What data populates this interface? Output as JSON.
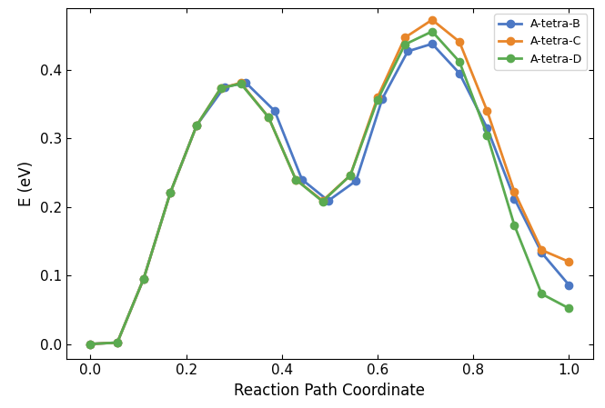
{
  "chart_data": {
    "type": "line",
    "x_label": "Reaction Path Coordinate",
    "y_label": "E (eV)",
    "xlim": [
      -0.05,
      1.05
    ],
    "ylim": [
      -0.022,
      0.49
    ],
    "xticks": [
      {
        "value": 0,
        "label": "0.0"
      },
      {
        "value": 0.2,
        "label": "0.2"
      },
      {
        "value": 0.4,
        "label": "0.4"
      },
      {
        "value": 0.6,
        "label": "0.6"
      },
      {
        "value": 0.8,
        "label": "0.8"
      },
      {
        "value": 1,
        "label": "1.0"
      }
    ],
    "yticks": [
      {
        "value": 0,
        "label": "0.0"
      },
      {
        "value": 0.1,
        "label": "0.1"
      },
      {
        "value": 0.2,
        "label": "0.2"
      },
      {
        "value": 0.3,
        "label": "0.3"
      },
      {
        "value": 0.4,
        "label": "0.4"
      }
    ],
    "grid": false,
    "legend": "upper right",
    "series": [
      {
        "name": "A-tetra-B",
        "color": "#4c78c4",
        "marker": "o",
        "line_style": "solid",
        "x": [
          0,
          0.056,
          0.111,
          0.167,
          0.222,
          0.28,
          0.325,
          0.385,
          0.442,
          0.497,
          0.555,
          0.61,
          0.663,
          0.714,
          0.771,
          0.829,
          0.886,
          0.943,
          1.0
        ],
        "values": [
          0,
          0.002,
          0.095,
          0.221,
          0.319,
          0.375,
          0.381,
          0.34,
          0.24,
          0.209,
          0.238,
          0.358,
          0.427,
          0.438,
          0.395,
          0.315,
          0.212,
          0.133,
          0.086
        ]
      },
      {
        "name": "A-tetra-C",
        "color": "#e8862a",
        "marker": "o",
        "line_style": "solid",
        "x": [
          0,
          0.056,
          0.111,
          0.167,
          0.222,
          0.272,
          0.314,
          0.372,
          0.429,
          0.485,
          0.543,
          0.6,
          0.657,
          0.714,
          0.771,
          0.829,
          0.886,
          0.943,
          1.0
        ],
        "values": [
          0,
          0.002,
          0.095,
          0.221,
          0.319,
          0.373,
          0.381,
          0.331,
          0.24,
          0.209,
          0.246,
          0.36,
          0.447,
          0.473,
          0.441,
          0.34,
          0.222,
          0.137,
          0.12
        ]
      },
      {
        "name": "A-tetra-D",
        "color": "#5aaa50",
        "marker": "o",
        "line_style": "solid",
        "x": [
          0,
          0.056,
          0.111,
          0.167,
          0.222,
          0.272,
          0.314,
          0.372,
          0.429,
          0.485,
          0.543,
          0.6,
          0.657,
          0.714,
          0.771,
          0.829,
          0.886,
          0.943,
          1.0
        ],
        "values": [
          0,
          0.002,
          0.095,
          0.221,
          0.319,
          0.373,
          0.38,
          0.331,
          0.24,
          0.208,
          0.246,
          0.356,
          0.437,
          0.456,
          0.412,
          0.305,
          0.173,
          0.073,
          0.052
        ]
      }
    ]
  }
}
